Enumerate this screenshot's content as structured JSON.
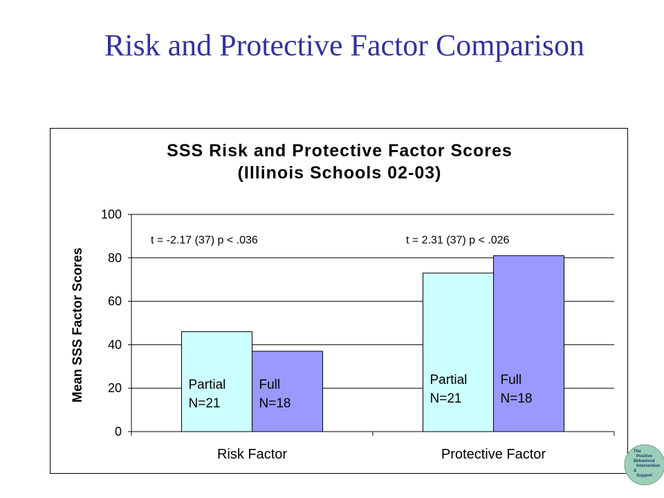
{
  "slide": {
    "title": "Risk and Protective Factor Comparison"
  },
  "colors": {
    "title": "#33339a",
    "partial": "#ccffff",
    "full": "#9999ff",
    "gridline": "#000000"
  },
  "logo": {
    "icon": "pbis-globe-logo",
    "text": [
      "The",
      "Positive",
      "Behavioral",
      "Intervention",
      "&",
      "Support"
    ]
  },
  "chart_data": {
    "type": "bar",
    "title": "SSS Risk and Protective Factor Scores",
    "subtitle": "(Illinois Schools 02-03)",
    "categories": [
      "Risk Factor",
      "Protective Factor"
    ],
    "series": [
      {
        "name": "Partial",
        "values": [
          46,
          73
        ],
        "label": [
          "Partial",
          "N=21"
        ],
        "color": "#ccffff"
      },
      {
        "name": "Full",
        "values": [
          37,
          81
        ],
        "label": [
          "Full",
          "N=18"
        ],
        "color": "#9999ff"
      }
    ],
    "ylabel": "Mean SSS Factor Scores",
    "xlabel": "",
    "ylim": [
      0,
      100
    ],
    "yticks": [
      0,
      20,
      40,
      60,
      80,
      100
    ],
    "grid": true,
    "annotations": [
      "t = -2.17 (37) p < .036",
      "t = 2.31 (37)  p < .026"
    ]
  }
}
